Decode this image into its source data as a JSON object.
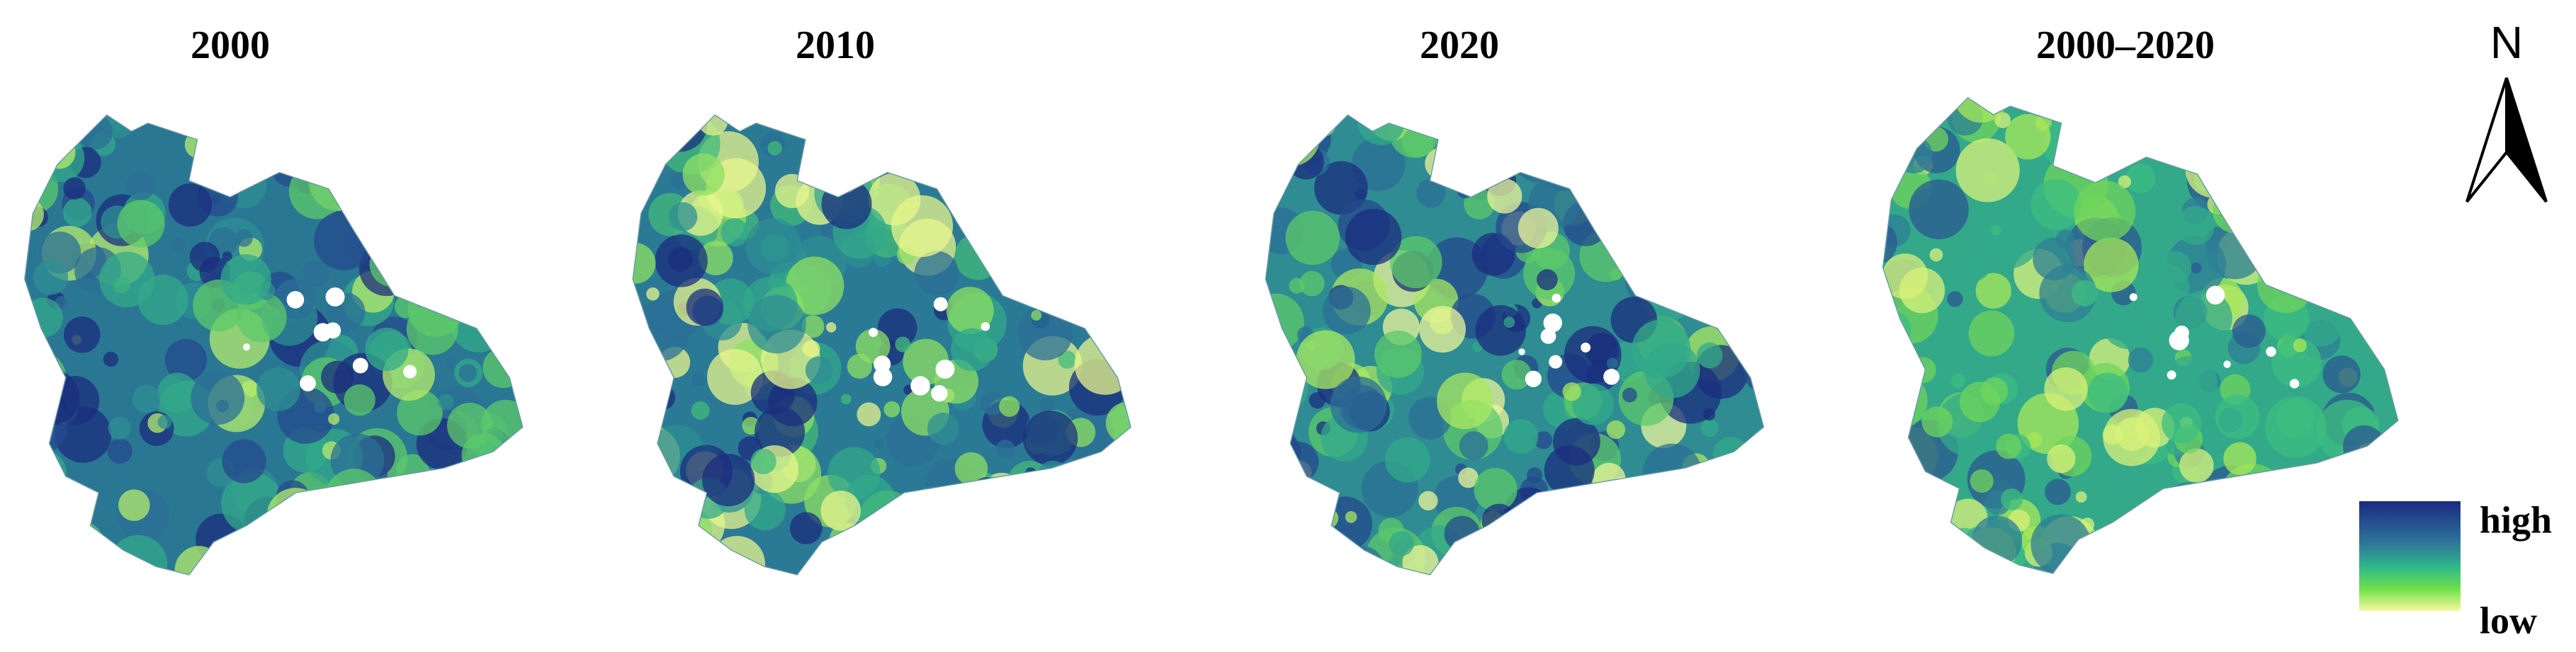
{
  "panels": [
    {
      "title": "2000"
    },
    {
      "title": "2010"
    },
    {
      "title": "2020"
    },
    {
      "title": "2000–2020"
    }
  ],
  "north_arrow": {
    "label": "N"
  },
  "legend": {
    "high": "high",
    "low": "low"
  }
}
